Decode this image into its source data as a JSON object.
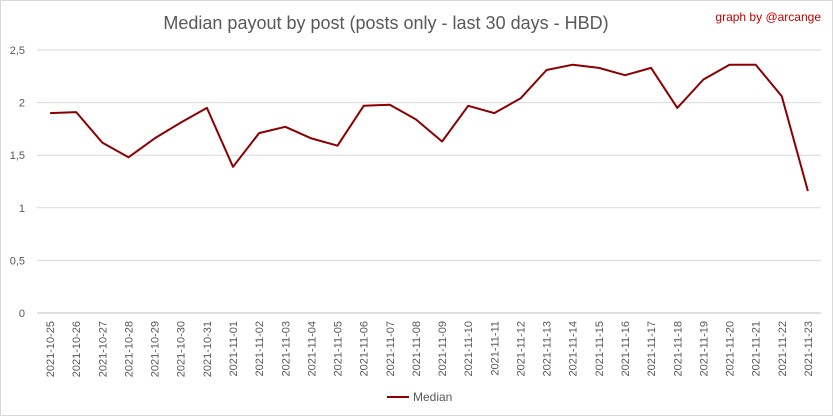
{
  "chart_data": {
    "type": "line",
    "title": "Median payout by post (posts only - last 30 days - HBD)",
    "credit": "graph by @arcange",
    "xlabel": "",
    "ylabel": "",
    "ylim": [
      0,
      2.5
    ],
    "yticks": [
      "0",
      "0,5",
      "1",
      "1,5",
      "2",
      "2,5"
    ],
    "grid": true,
    "legend_position": "bottom",
    "categories": [
      "2021-10-25",
      "2021-10-26",
      "2021-10-27",
      "2021-10-28",
      "2021-10-29",
      "2021-10-30",
      "2021-10-31",
      "2021-11-01",
      "2021-11-02",
      "2021-11-03",
      "2021-11-04",
      "2021-11-05",
      "2021-11-06",
      "2021-11-07",
      "2021-11-08",
      "2021-11-09",
      "2021-11-10",
      "2021-11-11",
      "2021-11-12",
      "2021-11-13",
      "2021-11-14",
      "2021-11-15",
      "2021-11-16",
      "2021-11-17",
      "2021-11-18",
      "2021-11-19",
      "2021-11-20",
      "2021-11-21",
      "2021-11-22",
      "2021-11-23"
    ],
    "series": [
      {
        "name": "Median",
        "color": "#8b0000",
        "values": [
          1.9,
          1.91,
          1.62,
          1.48,
          1.66,
          1.81,
          1.95,
          1.39,
          1.71,
          1.77,
          1.66,
          1.59,
          1.97,
          1.98,
          1.84,
          1.63,
          1.97,
          1.9,
          2.04,
          2.31,
          2.36,
          2.33,
          2.26,
          2.33,
          1.95,
          2.22,
          2.36,
          2.36,
          2.06,
          1.16
        ]
      }
    ]
  }
}
